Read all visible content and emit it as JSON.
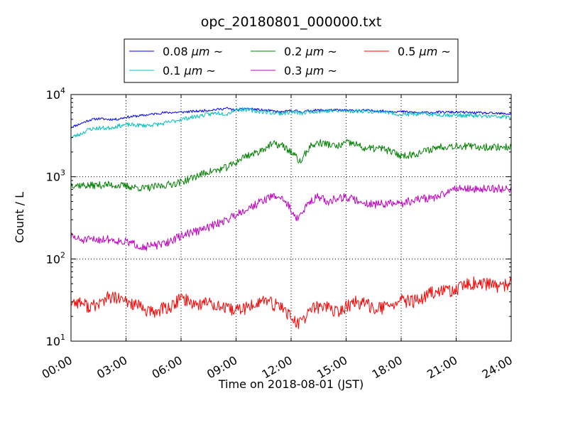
{
  "chart_data": {
    "type": "line",
    "title": "opc_20180801_000000.txt",
    "xlabel": "Time on 2018-08-01 (JST)",
    "ylabel": "Count / L",
    "yscale": "log",
    "xlim": [
      0,
      24
    ],
    "ylim": [
      10,
      10000
    ],
    "grid": true,
    "legend_position": "top",
    "x_ticks": [
      0,
      3,
      6,
      9,
      12,
      15,
      18,
      21,
      24
    ],
    "x_tick_labels": [
      "00:00",
      "03:00",
      "06:00",
      "09:00",
      "12:00",
      "15:00",
      "18:00",
      "21:00",
      "24:00"
    ],
    "y_ticks": [
      10,
      100,
      1000,
      10000
    ],
    "y_tick_labels": [
      {
        "base": "10",
        "exp": "1"
      },
      {
        "base": "10",
        "exp": "2"
      },
      {
        "base": "10",
        "exp": "3"
      },
      {
        "base": "10",
        "exp": "4"
      }
    ],
    "series": [
      {
        "name": "0.08 μm ~",
        "legend_base": "0.08 ",
        "legend_unit": "μm",
        "legend_tail": " ~",
        "color": "#0000ff",
        "noise": 0.015,
        "seed": 11,
        "x": [
          0,
          0.5,
          1,
          1.5,
          2,
          2.5,
          3,
          4,
          5,
          6,
          7,
          8,
          8.5,
          9,
          9.5,
          10,
          11,
          11.5,
          12,
          12.3,
          12.6,
          13,
          14,
          15,
          16,
          17,
          18,
          19,
          20,
          21,
          22,
          23,
          24
        ],
        "values": [
          4000,
          4400,
          4900,
          5100,
          5000,
          5000,
          5300,
          5600,
          6000,
          6100,
          6300,
          6600,
          6800,
          6400,
          6800,
          6600,
          6300,
          6100,
          6400,
          6300,
          6100,
          6400,
          6500,
          6400,
          6400,
          6300,
          6200,
          6000,
          6100,
          6100,
          6000,
          5900,
          5800
        ]
      },
      {
        "name": "0.1 μm ~",
        "legend_base": "0.1 ",
        "legend_unit": "μm",
        "legend_tail": " ~",
        "color": "#00bfbf",
        "noise": 0.025,
        "seed": 23,
        "x": [
          0,
          0.5,
          1,
          1.5,
          2,
          2.5,
          3,
          4,
          5,
          6,
          7,
          8,
          8.5,
          9,
          9.5,
          10,
          11,
          11.5,
          12,
          12.3,
          12.6,
          13,
          14,
          15,
          16,
          17,
          18,
          19,
          20,
          21,
          22,
          23,
          24
        ],
        "values": [
          3000,
          3300,
          3800,
          3900,
          3900,
          4100,
          4300,
          4200,
          4400,
          5000,
          5500,
          6000,
          5800,
          6600,
          6600,
          6300,
          6000,
          5900,
          6100,
          6000,
          5900,
          6200,
          6300,
          6300,
          6300,
          6200,
          5700,
          5800,
          5700,
          5600,
          5500,
          5400,
          5300
        ]
      },
      {
        "name": "0.2 μm ~",
        "legend_base": "0.2 ",
        "legend_unit": "μm",
        "legend_tail": " ~",
        "color": "#008000",
        "noise": 0.045,
        "seed": 37,
        "x": [
          0,
          1,
          2,
          3,
          4,
          5,
          6,
          6.5,
          7,
          7.5,
          8,
          8.5,
          9,
          9.5,
          10,
          10.5,
          11,
          11.5,
          12,
          12.3,
          12.5,
          13,
          13.5,
          14,
          14.5,
          15,
          15.5,
          16,
          17,
          17.5,
          18,
          18.5,
          19,
          20,
          21,
          22,
          23,
          24
        ],
        "values": [
          800,
          780,
          800,
          770,
          720,
          780,
          860,
          950,
          1050,
          1150,
          1200,
          1300,
          1500,
          1800,
          1900,
          2200,
          2500,
          2400,
          2000,
          1700,
          1500,
          2300,
          2600,
          2500,
          2300,
          2600,
          2500,
          2200,
          2200,
          2000,
          1800,
          1850,
          1950,
          2300,
          2400,
          2300,
          2300,
          2300
        ]
      },
      {
        "name": "0.3 μm ~",
        "legend_base": "0.3 ",
        "legend_unit": "μm",
        "legend_tail": " ~",
        "color": "#bf00bf",
        "noise": 0.05,
        "seed": 51,
        "x": [
          0,
          0.5,
          1,
          2,
          3,
          3.5,
          4,
          5,
          6,
          6.5,
          7,
          8,
          8.5,
          9,
          9.5,
          10,
          10.5,
          11,
          11.5,
          12,
          12.3,
          12.5,
          13,
          13.5,
          14,
          14.5,
          15,
          15.5,
          16,
          16.5,
          17,
          18,
          19,
          20,
          20.5,
          21,
          22,
          23,
          24
        ],
        "values": [
          190,
          170,
          170,
          175,
          160,
          150,
          140,
          150,
          190,
          210,
          220,
          270,
          300,
          350,
          400,
          450,
          520,
          580,
          560,
          400,
          310,
          330,
          500,
          580,
          480,
          560,
          560,
          520,
          480,
          460,
          470,
          470,
          540,
          560,
          650,
          740,
          700,
          720,
          710
        ]
      },
      {
        "name": "0.5 μm ~",
        "legend_base": "0.5 ",
        "legend_unit": "μm",
        "legend_tail": " ~",
        "color": "#ff0000",
        "noise": 0.08,
        "seed": 77,
        "x": [
          0,
          0.5,
          1,
          1.5,
          2,
          2.5,
          3,
          3.5,
          4,
          4.5,
          5,
          5.5,
          6,
          6.5,
          7,
          7.5,
          8,
          8.5,
          9,
          9.5,
          10,
          10.5,
          11,
          11.5,
          12,
          12.3,
          12.6,
          13,
          13.5,
          14,
          14.5,
          15,
          15.5,
          16,
          16.5,
          17,
          17.5,
          18,
          18.5,
          19,
          19.5,
          20,
          20.5,
          21,
          21.5,
          22,
          22.5,
          23,
          23.5,
          24
        ],
        "values": [
          30,
          30,
          26,
          28,
          34,
          33,
          30,
          28,
          24,
          22,
          25,
          26,
          34,
          30,
          28,
          30,
          27,
          24,
          24,
          25,
          28,
          32,
          28,
          26,
          20,
          16,
          17,
          24,
          26,
          27,
          22,
          26,
          30,
          28,
          26,
          25,
          28,
          31,
          30,
          31,
          38,
          39,
          42,
          41,
          48,
          51,
          49,
          48,
          46,
          50
        ]
      }
    ]
  }
}
